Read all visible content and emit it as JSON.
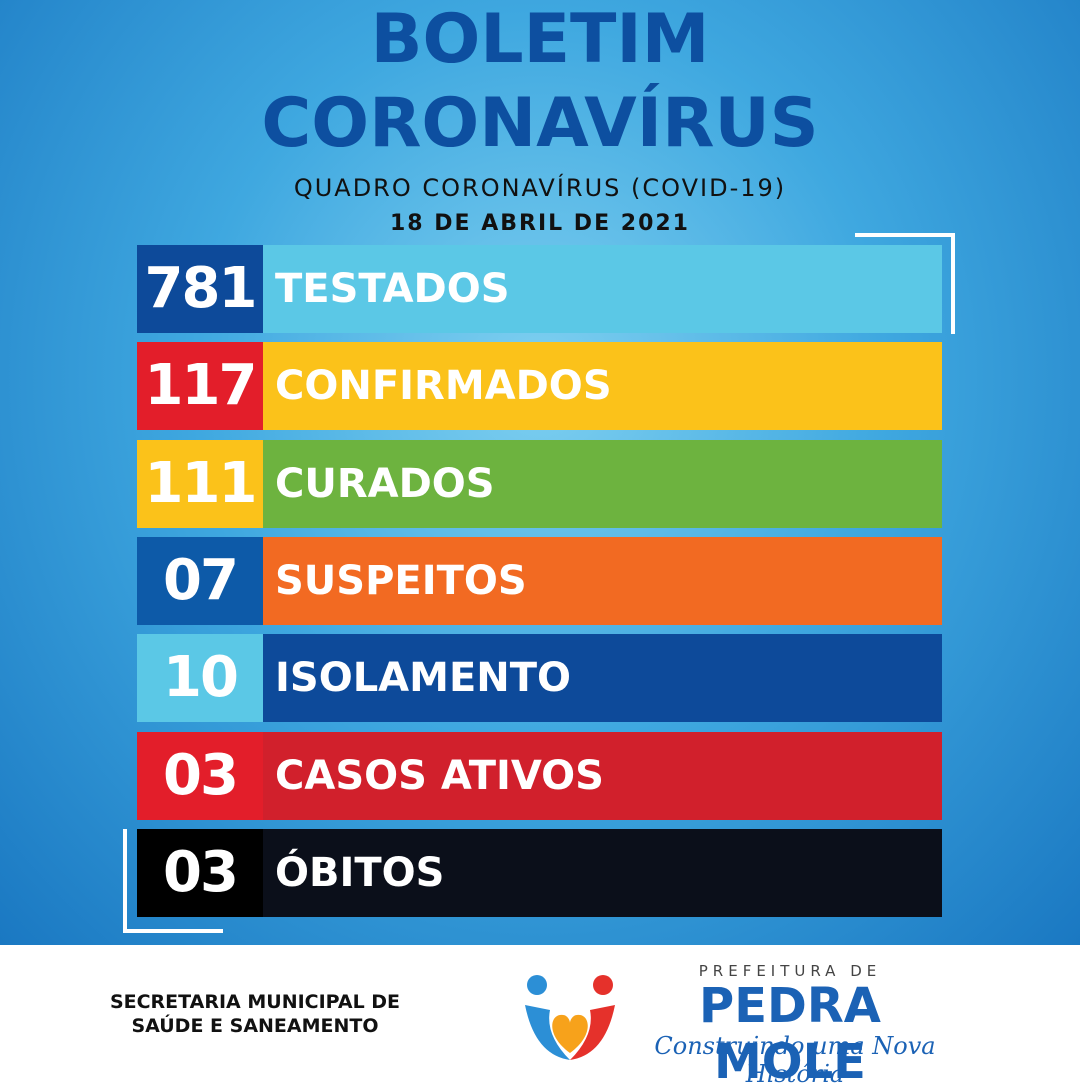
{
  "header": {
    "title_lines": [
      "BOLETIM",
      "CORONAVÍRUS"
    ],
    "subtitle": "QUADRO CORONAVÍRUS (COVID-19)",
    "date": "18 DE ABRIL DE 2021"
  },
  "rows": [
    {
      "number": "781",
      "label": "TESTADOS"
    },
    {
      "number": "117",
      "label": "CONFIRMADOS"
    },
    {
      "number": "111",
      "label": "CURADOS"
    },
    {
      "number": "07",
      "label": "SUSPEITOS"
    },
    {
      "number": "10",
      "label": "ISOLAMENTO"
    },
    {
      "number": "03",
      "label": "CASOS ATIVOS"
    },
    {
      "number": "03",
      "label": "ÓBITOS"
    }
  ],
  "footer": {
    "department_lines": [
      "SECRETARIA MUNICIPAL DE",
      "SAÚDE E SANEAMENTO"
    ],
    "logo": {
      "top": "PREFEITURA DE",
      "name": "PEDRA MOLE",
      "slogan": "Construindo uma Nova História"
    }
  }
}
